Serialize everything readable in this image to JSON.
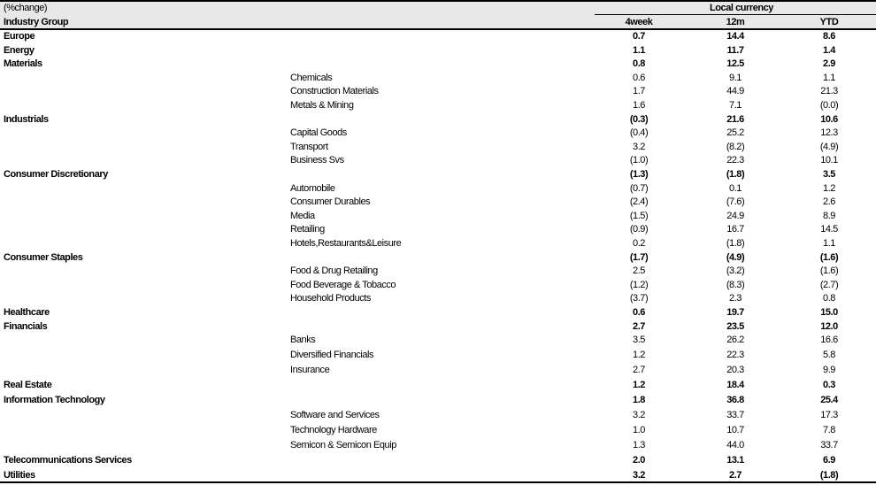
{
  "header": {
    "unit_label": "(%change)",
    "group_label": "Industry Group",
    "currency_label": "Local currency",
    "columns": [
      "4week",
      "12m",
      "YTD"
    ]
  },
  "rows": [
    {
      "label": "Europe",
      "level": "group",
      "values": [
        "0.7",
        "14.4",
        "8.6"
      ]
    },
    {
      "label": "Energy",
      "level": "group",
      "values": [
        "1.1",
        "11.7",
        "1.4"
      ]
    },
    {
      "label": "Materials",
      "level": "group",
      "values": [
        "0.8",
        "12.5",
        "2.9"
      ]
    },
    {
      "label": "Chemicals",
      "level": "sub",
      "values": [
        "0.6",
        "9.1",
        "1.1"
      ]
    },
    {
      "label": "Construction Materials",
      "level": "sub",
      "values": [
        "1.7",
        "44.9",
        "21.3"
      ]
    },
    {
      "label": "Metals & Mining",
      "level": "sub",
      "values": [
        "1.6",
        "7.1",
        "(0.0)"
      ]
    },
    {
      "label": "Industrials",
      "level": "group",
      "values": [
        "(0.3)",
        "21.6",
        "10.6"
      ]
    },
    {
      "label": "Capital Goods",
      "level": "sub",
      "values": [
        "(0.4)",
        "25.2",
        "12.3"
      ]
    },
    {
      "label": "Transport",
      "level": "sub",
      "values": [
        "3.2",
        "(8.2)",
        "(4.9)"
      ]
    },
    {
      "label": "Business Svs",
      "level": "sub",
      "values": [
        "(1.0)",
        "22.3",
        "10.1"
      ]
    },
    {
      "label": "Consumer Discretionary",
      "level": "group",
      "values": [
        "(1.3)",
        "(1.8)",
        "3.5"
      ]
    },
    {
      "label": "Automobile",
      "level": "sub",
      "values": [
        "(0.7)",
        "0.1",
        "1.2"
      ]
    },
    {
      "label": "Consumer Durables",
      "level": "sub",
      "values": [
        "(2.4)",
        "(7.6)",
        "2.6"
      ]
    },
    {
      "label": "Media",
      "level": "sub",
      "values": [
        "(1.5)",
        "24.9",
        "8.9"
      ]
    },
    {
      "label": "Retailing",
      "level": "sub",
      "values": [
        "(0.9)",
        "16.7",
        "14.5"
      ]
    },
    {
      "label": "Hotels,Restaurants&Leisure",
      "level": "sub",
      "values": [
        "0.2",
        "(1.8)",
        "1.1"
      ]
    },
    {
      "label": "Consumer Staples",
      "level": "group",
      "values": [
        "(1.7)",
        "(4.9)",
        "(1.6)"
      ]
    },
    {
      "label": "Food & Drug Retailing",
      "level": "sub",
      "values": [
        "2.5",
        "(3.2)",
        "(1.6)"
      ]
    },
    {
      "label": "Food Beverage & Tobacco",
      "level": "sub",
      "values": [
        "(1.2)",
        "(8.3)",
        "(2.7)"
      ]
    },
    {
      "label": "Household Products",
      "level": "sub",
      "values": [
        "(3.7)",
        "2.3",
        "0.8"
      ]
    },
    {
      "label": "Healthcare",
      "level": "group",
      "values": [
        "0.6",
        "19.7",
        "15.0"
      ]
    },
    {
      "label": "Financials",
      "level": "group",
      "values": [
        "2.7",
        "23.5",
        "12.0"
      ]
    },
    {
      "label": "Banks",
      "level": "sub",
      "values": [
        "3.5",
        "26.2",
        "16.6"
      ]
    },
    {
      "label": "Diversified Financials",
      "level": "sub",
      "values": [
        "1.2",
        "22.3",
        "5.8"
      ]
    },
    {
      "label": "Insurance",
      "level": "sub",
      "values": [
        "2.7",
        "20.3",
        "9.9"
      ]
    },
    {
      "label": "Real Estate",
      "level": "group",
      "values": [
        "1.2",
        "18.4",
        "0.3"
      ]
    },
    {
      "label": "Information Technology",
      "level": "group",
      "values": [
        "1.8",
        "36.8",
        "25.4"
      ]
    },
    {
      "label": "Software and Services",
      "level": "sub",
      "values": [
        "3.2",
        "33.7",
        "17.3"
      ]
    },
    {
      "label": "Technology Hardware",
      "level": "sub",
      "values": [
        "1.0",
        "10.7",
        "7.8"
      ]
    },
    {
      "label": "Semicon & Semicon Equip",
      "level": "sub",
      "values": [
        "1.3",
        "44.0",
        "33.7"
      ]
    },
    {
      "label": "Telecommunications Services",
      "level": "group",
      "values": [
        "2.0",
        "13.1",
        "6.9"
      ]
    },
    {
      "label": "Utilities",
      "level": "group",
      "values": [
        "3.2",
        "2.7",
        "(1.8)"
      ]
    }
  ]
}
